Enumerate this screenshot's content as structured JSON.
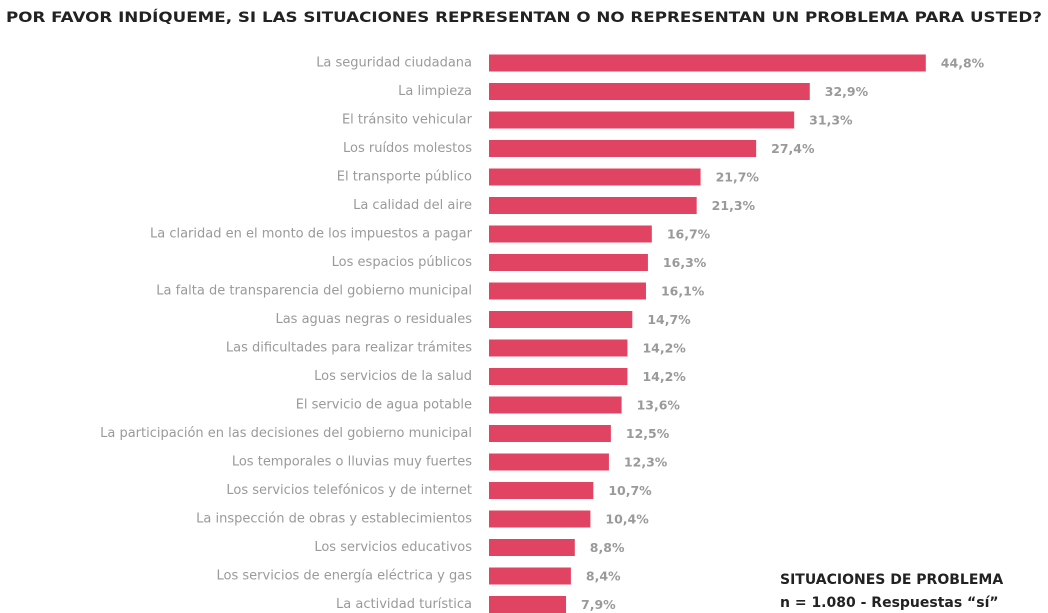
{
  "chart_data": {
    "type": "bar",
    "orientation": "horizontal",
    "title": "POR FAVOR INDÍQUEME, SI LAS SITUACIONES REPRESENTAN O NO REPRESENTAN UN PROBLEMA PARA USTED?",
    "categories": [
      "La seguridad ciudadana",
      "La limpieza",
      "El tránsito vehicular",
      "Los ruídos molestos",
      "El transporte público",
      "La calidad del aire",
      "La claridad en el monto de los impuestos a pagar",
      "Los espacios públicos",
      "La falta de transparencia del gobierno municipal",
      "Las aguas negras o residuales",
      "Las dificultades para realizar trámites",
      "Los servicios de la salud",
      "El servicio de agua potable",
      "La participación en las decisiones del gobierno municipal",
      "Los temporales o lluvias muy fuertes",
      "Los servicios telefónicos y de internet",
      "La inspección de obras y establecimientos",
      "Los servicios educativos",
      "Los servicios de energía eléctrica y gas",
      "La actividad turística"
    ],
    "values": [
      44.8,
      32.9,
      31.3,
      27.4,
      21.7,
      21.3,
      16.7,
      16.3,
      16.1,
      14.7,
      14.2,
      14.2,
      13.6,
      12.5,
      12.3,
      10.7,
      10.4,
      8.8,
      8.4,
      7.9
    ],
    "value_labels": [
      "44,8%",
      "32,9%",
      "31,3%",
      "27,4%",
      "21,7%",
      "21,3%",
      "16,7%",
      "16,3%",
      "16,1%",
      "14,7%",
      "14,2%",
      "14,2%",
      "13,6%",
      "12,5%",
      "12,3%",
      "10,7%",
      "10,4%",
      "8,8%",
      "8,4%",
      "7,9%"
    ],
    "color": "#e04462",
    "annotations": [
      "SITUACIONES DE PROBLEMA",
      "n = 1.080 - Respuestas “sí”"
    ]
  }
}
